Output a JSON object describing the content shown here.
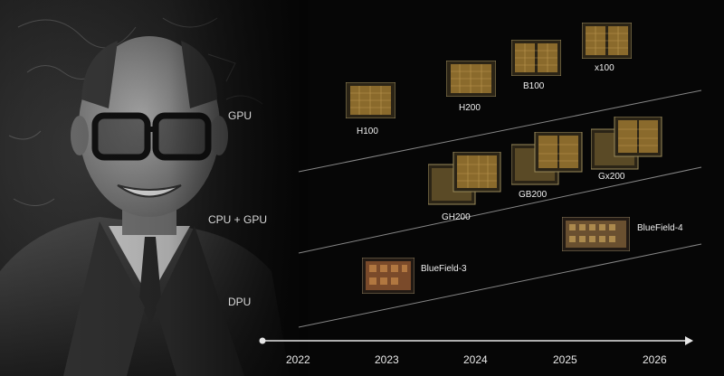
{
  "categories": {
    "gpu": "GPU",
    "cpu_gpu": "CPU + GPU",
    "dpu": "DPU"
  },
  "chips": {
    "h100": "H100",
    "h200": "H200",
    "b100": "B100",
    "x100": "x100",
    "gh200": "GH200",
    "gb200": "GB200",
    "gx200": "Gx200",
    "bluefield3": "BlueField-3",
    "bluefield4": "BlueField-4"
  },
  "timeline": {
    "years": [
      "2022",
      "2023",
      "2024",
      "2025",
      "2026"
    ]
  },
  "colors": {
    "background": "#050505",
    "text": "#e6e6e6",
    "gpu_die": "#8a6a2c",
    "dpu_die": "#7a4a2a"
  },
  "icons": {
    "portrait": "person-photo",
    "chip": "chip-die-photo"
  }
}
